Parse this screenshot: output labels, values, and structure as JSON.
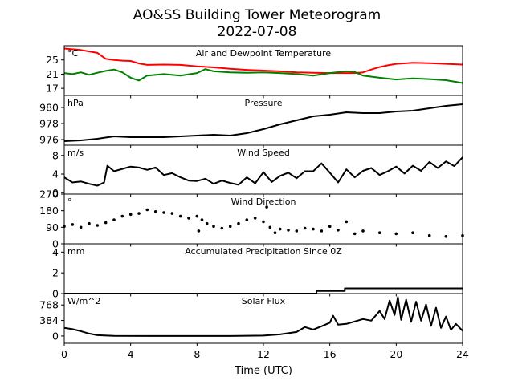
{
  "figure": {
    "title": "AO&SS Building Tower Meteorogram",
    "subtitle": "2022-07-08",
    "xlabel": "Time (UTC)"
  },
  "chart_data": [
    {
      "id": "temp",
      "type": "line",
      "title": "Air and Dewpoint Temperature",
      "unit": "°C",
      "xlim": [
        0,
        24
      ],
      "ylim": [
        15,
        29
      ],
      "yticks": [
        17,
        21,
        25
      ],
      "series": [
        {
          "color": "#ff0000",
          "x": [
            0,
            0.5,
            1,
            1.5,
            2,
            2.5,
            3,
            3.5,
            4,
            4.5,
            5,
            6,
            7,
            8,
            9,
            10,
            11,
            12,
            13,
            14,
            15,
            16,
            17,
            17.5,
            18,
            18.5,
            19,
            19.5,
            20,
            21,
            22,
            23,
            24
          ],
          "y": [
            28.2,
            28,
            27.8,
            27.4,
            27,
            25.3,
            25,
            24.8,
            24.7,
            24,
            23.6,
            23.7,
            23.6,
            23.2,
            22.9,
            22.5,
            22.2,
            22,
            21.8,
            21.5,
            21.4,
            21.3,
            21.3,
            21.3,
            21.5,
            22.3,
            23,
            23.5,
            23.9,
            24.2,
            24.1,
            23.9,
            23.7
          ]
        },
        {
          "color": "#008000",
          "x": [
            0,
            0.5,
            1,
            1.5,
            2,
            2.5,
            3,
            3.5,
            4,
            4.5,
            5,
            6,
            7,
            8,
            8.5,
            9,
            10,
            11,
            12,
            13,
            14,
            15,
            16,
            17,
            17.5,
            18,
            19,
            20,
            21,
            22,
            23,
            24
          ],
          "y": [
            21.3,
            21,
            21.5,
            20.8,
            21.4,
            21.9,
            22.3,
            21.5,
            20,
            19.2,
            20.6,
            21,
            20.6,
            21.3,
            22.4,
            21.8,
            21.5,
            21.4,
            21.5,
            21.3,
            21,
            20.6,
            21.3,
            21.8,
            21.6,
            20.6,
            20,
            19.5,
            19.8,
            19.6,
            19.3,
            18.5
          ]
        }
      ]
    },
    {
      "id": "pressure",
      "type": "line",
      "title": "Pressure",
      "unit": "hPa",
      "xlim": [
        0,
        24
      ],
      "ylim": [
        975.3,
        981.5
      ],
      "yticks": [
        976,
        978,
        980
      ],
      "series": [
        {
          "color": "#000000",
          "x": [
            0,
            1,
            2,
            3,
            4,
            5,
            6,
            7,
            8,
            9,
            10,
            11,
            12,
            13,
            14,
            15,
            16,
            17,
            18,
            19,
            20,
            21,
            22,
            23,
            24
          ],
          "y": [
            975.8,
            975.9,
            976.1,
            976.4,
            976.3,
            976.3,
            976.3,
            976.4,
            976.5,
            976.6,
            976.5,
            976.8,
            977.3,
            977.9,
            978.4,
            978.9,
            979.1,
            979.4,
            979.3,
            979.3,
            979.5,
            979.6,
            979.9,
            980.2,
            980.4
          ]
        }
      ]
    },
    {
      "id": "wind_speed",
      "type": "line",
      "title": "Wind Speed",
      "unit": "m/s",
      "xlim": [
        0,
        24
      ],
      "ylim": [
        -0.3,
        10.2
      ],
      "yticks": [
        0,
        4,
        8
      ],
      "series": [
        {
          "color": "#000000",
          "x": [
            0,
            0.5,
            1,
            1.5,
            2,
            2.4,
            2.6,
            3,
            3.5,
            4,
            4.5,
            5,
            5.5,
            6,
            6.5,
            7,
            7.5,
            8,
            8.5,
            9,
            9.5,
            10,
            10.5,
            11,
            11.5,
            12,
            12.5,
            13,
            13.5,
            14,
            14.5,
            15,
            15.5,
            16,
            16.5,
            17,
            17.5,
            18,
            18.5,
            19,
            19.5,
            20,
            20.5,
            21,
            21.5,
            22,
            22.5,
            23,
            23.5,
            24
          ],
          "y": [
            3.3,
            2.2,
            2.4,
            1.9,
            1.5,
            2.2,
            5.8,
            4.6,
            5.1,
            5.6,
            5.4,
            4.9,
            5.4,
            3.8,
            4.2,
            3.3,
            2.6,
            2.5,
            3.0,
            1.9,
            2.6,
            2.1,
            1.7,
            3.3,
            2.0,
            4.4,
            2.3,
            3.6,
            4.3,
            3.1,
            4.6,
            4.6,
            6.3,
            4.3,
            2.2,
            5.0,
            3.3,
            4.7,
            5.3,
            3.8,
            4.6,
            5.6,
            4.1,
            5.8,
            4.7,
            6.6,
            5.3,
            6.7,
            5.7,
            7.6
          ]
        }
      ]
    },
    {
      "id": "wind_dir",
      "type": "scatter",
      "title": "Wind Direction",
      "unit": "°",
      "xlim": [
        0,
        24
      ],
      "ylim": [
        0,
        270
      ],
      "yticks": [
        0,
        90,
        180,
        270
      ],
      "series": [
        {
          "color": "#000000",
          "x": [
            0,
            0.5,
            1,
            1.5,
            2,
            2.5,
            3,
            3.5,
            4,
            4.5,
            5,
            5.5,
            6,
            6.5,
            7,
            7.5,
            8,
            8.1,
            8.3,
            8.6,
            9,
            9.5,
            10,
            10.5,
            11,
            11.5,
            12,
            12.2,
            12.4,
            12.7,
            13,
            13.5,
            14,
            14.5,
            15,
            15.5,
            16,
            16.5,
            17,
            17.5,
            18,
            19,
            20,
            21,
            22,
            23,
            24
          ],
          "y": [
            95,
            105,
            90,
            110,
            100,
            115,
            130,
            150,
            160,
            165,
            185,
            175,
            170,
            165,
            150,
            140,
            150,
            70,
            130,
            110,
            95,
            85,
            95,
            110,
            130,
            140,
            120,
            200,
            90,
            60,
            80,
            75,
            70,
            85,
            80,
            70,
            95,
            75,
            120,
            55,
            70,
            60,
            55,
            60,
            45,
            40,
            45
          ]
        }
      ]
    },
    {
      "id": "precip",
      "type": "line",
      "title": "Accumulated Precipitation Since 0Z",
      "unit": "mm",
      "xlim": [
        0,
        24
      ],
      "ylim": [
        0,
        4.8
      ],
      "yticks": [
        0,
        2,
        4
      ],
      "series": [
        {
          "color": "#000000",
          "x": [
            0,
            15.2,
            15.2,
            16.9,
            16.9,
            24
          ],
          "y": [
            0,
            0,
            0.25,
            0.25,
            0.5,
            0.5
          ]
        }
      ]
    },
    {
      "id": "solar",
      "type": "line",
      "title": "Solar Flux",
      "unit": "W/m^2",
      "xlim": [
        0,
        24
      ],
      "ylim": [
        -180,
        1050
      ],
      "yticks": [
        0,
        384,
        768
      ],
      "series": [
        {
          "color": "#000000",
          "x": [
            0,
            0.5,
            1,
            1.5,
            2,
            3,
            5,
            8,
            10,
            12,
            13,
            14,
            14.5,
            15,
            15.5,
            16,
            16.2,
            16.5,
            17,
            17.5,
            18,
            18.5,
            19,
            19.3,
            19.6,
            19.9,
            20.1,
            20.3,
            20.6,
            20.9,
            21.2,
            21.5,
            21.8,
            22.1,
            22.4,
            22.7,
            23,
            23.3,
            23.6,
            24
          ],
          "y": [
            200,
            170,
            120,
            60,
            20,
            5,
            0,
            0,
            0,
            10,
            40,
            100,
            220,
            160,
            240,
            330,
            500,
            280,
            300,
            360,
            420,
            380,
            620,
            420,
            880,
            520,
            960,
            400,
            900,
            350,
            850,
            380,
            780,
            250,
            700,
            200,
            480,
            150,
            300,
            130
          ]
        }
      ]
    }
  ]
}
